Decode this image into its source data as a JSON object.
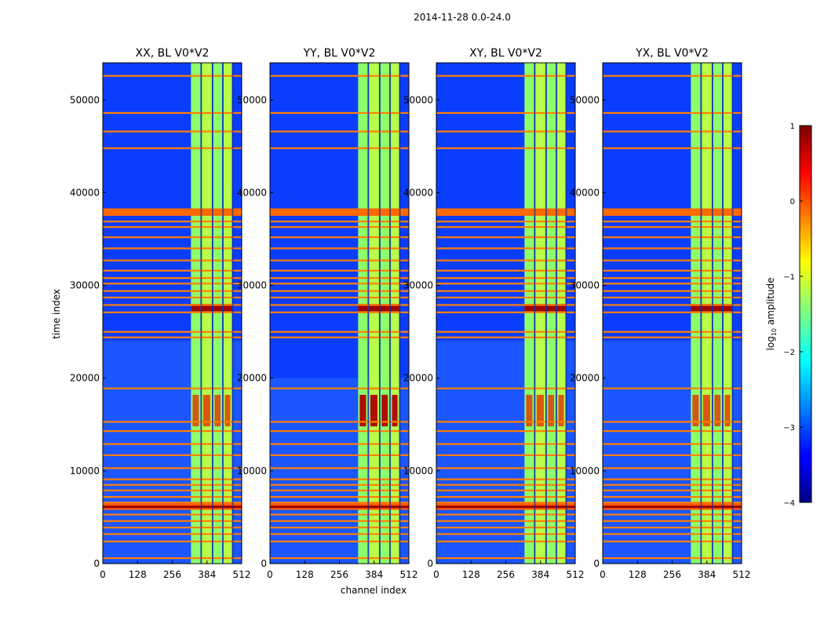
{
  "chart_data": {
    "type": "heatmap",
    "suptitle": "2014-11-28 0.0-24.0",
    "xlabel": "channel index",
    "ylabel": "time index",
    "xlim": [
      0,
      512
    ],
    "ylim": [
      0,
      54000
    ],
    "xticks": [
      0,
      128,
      256,
      384,
      512
    ],
    "yticks": [
      0,
      10000,
      20000,
      30000,
      40000,
      50000
    ],
    "panels": [
      {
        "title": "XX, BL V0*V2",
        "bright_band_start": 24000
      },
      {
        "title": "YY, BL V0*V2",
        "bright_band_start": 20000
      },
      {
        "title": "XY, BL V0*V2",
        "bright_band_start": 24000
      },
      {
        "title": "YX, BL V0*V2",
        "bright_band_start": 24000
      }
    ],
    "colorbar": {
      "label_prefix": "log",
      "label_sub": "10",
      "label_suffix": " amplitude",
      "range": [
        -4,
        1
      ],
      "ticks": [
        "1",
        "0",
        "−1",
        "−2",
        "−3",
        "−4"
      ],
      "colormap": "jet"
    },
    "occupied_channels": [
      {
        "start": 325,
        "end": 360
      },
      {
        "start": 364,
        "end": 402
      },
      {
        "start": 406,
        "end": 440
      },
      {
        "start": 444,
        "end": 476
      }
    ],
    "flagged_time_rows": [
      600,
      2400,
      3200,
      3900,
      4600,
      5300,
      6000,
      6600,
      7200,
      7900,
      8500,
      9100,
      10300,
      11700,
      12900,
      14300,
      15300,
      18900,
      24400,
      25000,
      27100,
      27900,
      28700,
      29400,
      30200,
      30800,
      31600,
      32700,
      34000,
      35200,
      36300,
      36900,
      44800,
      46600,
      48600,
      52600
    ],
    "wide_flag_band": [
      37500,
      38300
    ],
    "strong_rfi_band": [
      5800,
      6500
    ],
    "strong_rfi_band2": [
      27200,
      28000
    ],
    "strong_rfi_block": [
      14800,
      18200
    ]
  }
}
